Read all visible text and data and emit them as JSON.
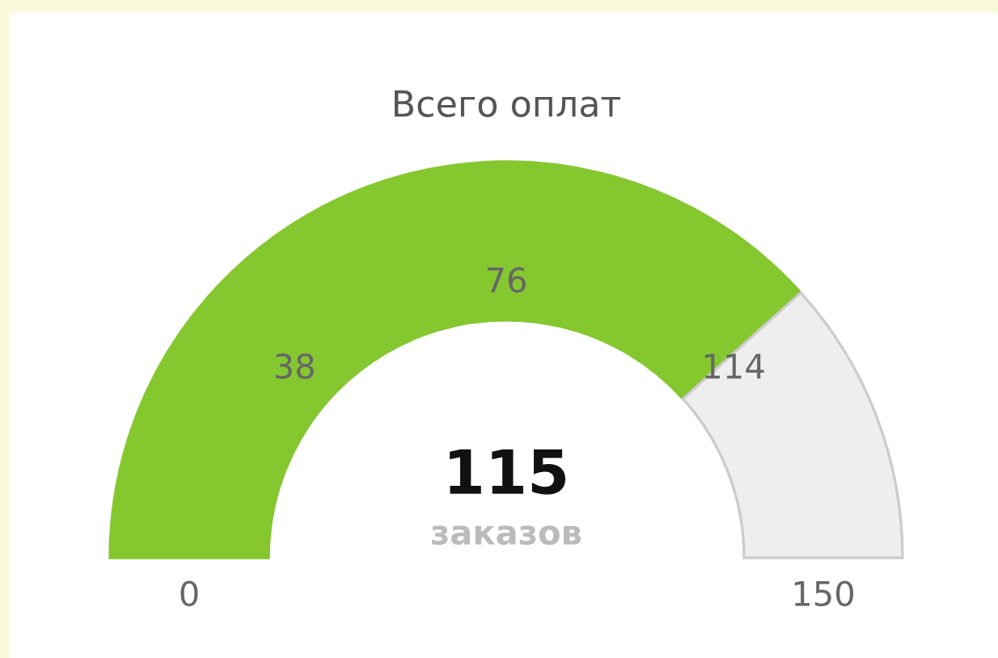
{
  "chart_data": {
    "type": "donut",
    "title": "Всего оплат",
    "categories": [
      null,
      null
    ],
    "values": [
      115,
      35
    ],
    "colors": [
      "#85c72f",
      "#eeeeee"
    ],
    "value_labels": [
      "115",
      null
    ],
    "annotations": [
      "0",
      "38",
      "76",
      "114",
      "150",
      "заказов"
    ]
  }
}
